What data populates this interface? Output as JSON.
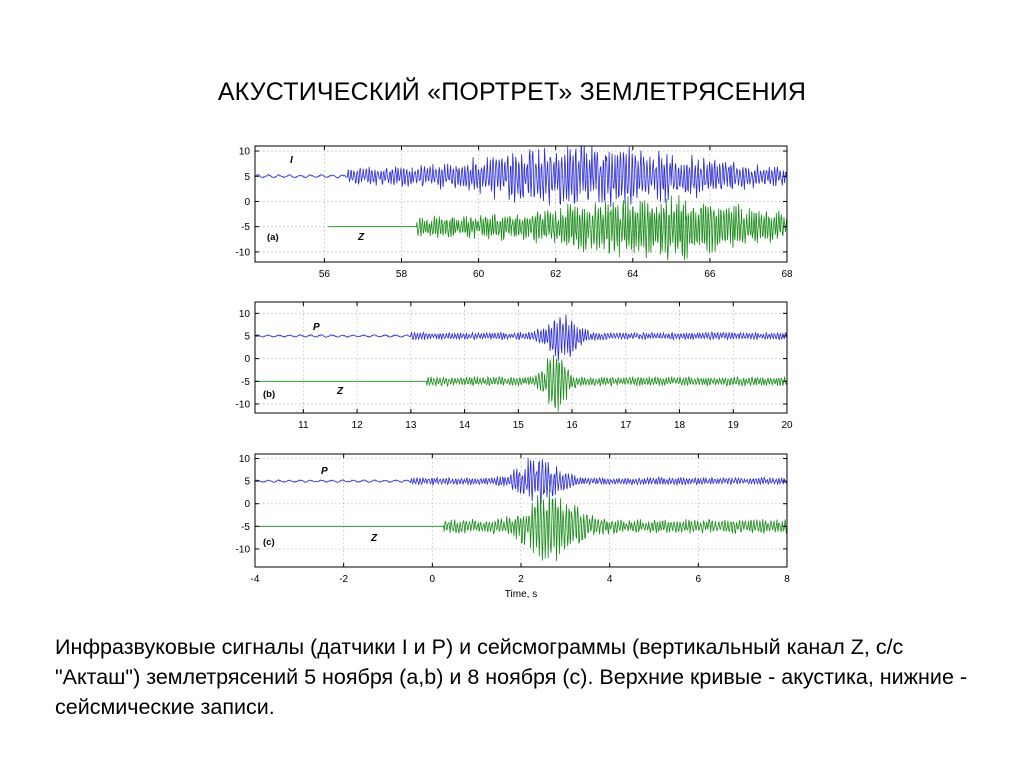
{
  "slide": {
    "title": "АКУСТИЧЕСКИЙ «ПОРТРЕТ» ЗЕМЛЕТРЯСЕНИЯ",
    "caption": "Инфразвуковые сигналы (датчики I и P) и сейсмограммы (вертикальный канал Z, с/с \"Акташ\") землетрясений 5 ноября (a,b) и 8 ноября (c). Верхние кривые - акустика, нижние - сейсмические записи."
  },
  "colors": {
    "infrasound": "#2b2bd6",
    "seismic": "#1a8c1a",
    "grid": "#b8b8b8",
    "axis": "#000000"
  },
  "chart_data": [
    {
      "type": "line",
      "panel_label": "(a)",
      "xlim": [
        54.2,
        68
      ],
      "ylim": [
        -12,
        11
      ],
      "xticks": [
        "56",
        "58",
        "60",
        "62",
        "64",
        "66",
        "68"
      ],
      "yticks": [
        "10",
        "5",
        "0",
        "-5",
        "-10"
      ],
      "grid": true,
      "xlabel": "",
      "series": [
        {
          "name": "I",
          "offset": 5,
          "onset": 56.6,
          "quiet_amp": 0.25,
          "pre_amp": 1.5,
          "peaks": [
            {
              "t": 63.0,
              "a": 5.5,
              "w": 5.0
            }
          ]
        },
        {
          "name": "Z",
          "offset": -5,
          "start": 56.1,
          "onset": 58.4,
          "quiet_amp": 0.0,
          "pre_amp": 2.0,
          "peaks": [
            {
              "t": 64.5,
              "a": 5.0,
              "w": 4.0
            }
          ]
        }
      ]
    },
    {
      "type": "line",
      "panel_label": "(b)",
      "xlim": [
        10.1,
        20
      ],
      "ylim": [
        -12,
        12.5
      ],
      "xticks": [
        "11",
        "12",
        "13",
        "14",
        "15",
        "16",
        "17",
        "18",
        "19",
        "20"
      ],
      "yticks": [
        "10",
        "5",
        "0",
        "-5",
        "-10"
      ],
      "grid": true,
      "xlabel": "",
      "series": [
        {
          "name": "P",
          "offset": 5,
          "onset": 13.0,
          "quiet_amp": 0.2,
          "pre_amp": 0.8,
          "peaks": [
            {
              "t": 15.8,
              "a": 6.0,
              "w": 0.5
            }
          ]
        },
        {
          "name": "Z",
          "offset": -5,
          "start": 10.1,
          "onset": 13.3,
          "quiet_amp": 0.0,
          "pre_amp": 1.0,
          "peaks": [
            {
              "t": 15.7,
              "a": 7.0,
              "w": 0.35
            }
          ]
        }
      ]
    },
    {
      "type": "line",
      "panel_label": "(c)",
      "xlim": [
        -4,
        8
      ],
      "ylim": [
        -14,
        11
      ],
      "xticks": [
        "-4",
        "-2",
        "0",
        "2",
        "4",
        "6",
        "8"
      ],
      "yticks": [
        "10",
        "5",
        "0",
        "-5",
        "-10"
      ],
      "grid": true,
      "xlabel": "Time, s",
      "series": [
        {
          "name": "P",
          "offset": 5,
          "onset": -0.5,
          "quiet_amp": 0.2,
          "pre_amp": 0.8,
          "peaks": [
            {
              "t": 2.4,
              "a": 5.5,
              "w": 0.8
            }
          ]
        },
        {
          "name": "Z",
          "offset": -5,
          "start": -4,
          "onset": 0.25,
          "quiet_amp": 0.0,
          "pre_amp": 1.5,
          "peaks": [
            {
              "t": 2.7,
              "a": 8.0,
              "w": 1.0
            }
          ]
        }
      ]
    }
  ]
}
